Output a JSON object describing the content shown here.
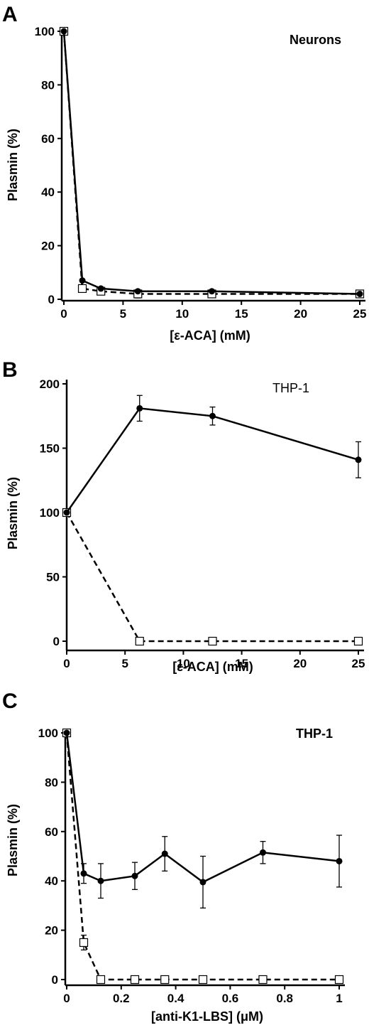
{
  "chart_data": [
    {
      "type": "line",
      "panel_label": "A",
      "annotation": "Neurons",
      "xlabel": "[ε-ACA] (mM)",
      "ylabel": "Plasmin (%)",
      "xlim": [
        0,
        25
      ],
      "ylim": [
        0,
        100
      ],
      "x_ticks": [
        0,
        5,
        10,
        15,
        20,
        25
      ],
      "y_ticks": [
        0,
        20,
        40,
        60,
        80,
        100
      ],
      "x_tick_labels": [
        "0",
        "5",
        "10",
        "15",
        "20",
        "25"
      ],
      "y_tick_labels": [
        "0",
        "20",
        "40",
        "60",
        "80",
        "100"
      ],
      "grid": false,
      "series": [
        {
          "marker": "filled-circle",
          "line": "solid",
          "x": [
            0,
            1.56,
            3.13,
            6.25,
            12.5,
            25
          ],
          "y": [
            100,
            7,
            4,
            3,
            3,
            2
          ],
          "err": [
            0,
            0,
            0,
            0,
            0,
            0
          ]
        },
        {
          "marker": "open-square",
          "line": "dashed",
          "x": [
            0,
            1.56,
            3.13,
            6.25,
            12.5,
            25
          ],
          "y": [
            100,
            4,
            3,
            2,
            2,
            2
          ],
          "err": [
            0,
            0,
            0,
            1.5,
            0,
            0
          ]
        }
      ]
    },
    {
      "type": "line",
      "panel_label": "B",
      "annotation": "THP-1",
      "xlabel": "[ε-ACA] (mM)",
      "ylabel": "Plasmin (%)",
      "xlim": [
        0,
        25
      ],
      "ylim": [
        0,
        200
      ],
      "x_ticks": [
        0,
        5,
        10,
        15,
        20,
        25
      ],
      "y_ticks": [
        0,
        50,
        100,
        150,
        200
      ],
      "x_tick_labels": [
        "0",
        "5",
        "10",
        "15",
        "20",
        "25"
      ],
      "y_tick_labels": [
        "0",
        "50",
        "100",
        "150",
        "200"
      ],
      "grid": false,
      "series": [
        {
          "marker": "filled-circle",
          "line": "solid",
          "x": [
            0,
            6.25,
            12.5,
            25
          ],
          "y": [
            100,
            181,
            175,
            141
          ],
          "err": [
            0,
            10,
            7,
            14
          ]
        },
        {
          "marker": "open-square",
          "line": "dashed",
          "x": [
            0,
            6.25,
            12.5,
            25
          ],
          "y": [
            100,
            0,
            0,
            0
          ],
          "err": [
            0,
            0,
            0,
            0
          ]
        }
      ]
    },
    {
      "type": "line",
      "panel_label": "C",
      "annotation": "THP-1",
      "xlabel": "[anti-K1-LBS] (μM)",
      "ylabel": "Plasmin (%)",
      "xlim": [
        0,
        1
      ],
      "ylim": [
        0,
        100
      ],
      "x_ticks": [
        0,
        0.2,
        0.4,
        0.6,
        0.8,
        1
      ],
      "y_ticks": [
        0,
        20,
        40,
        60,
        80,
        100
      ],
      "x_tick_labels": [
        "0",
        "0.2",
        "0.4",
        "0.6",
        "0.8",
        "1"
      ],
      "y_tick_labels": [
        "0",
        "20",
        "40",
        "60",
        "80",
        "100"
      ],
      "grid": false,
      "series": [
        {
          "marker": "filled-circle",
          "line": "solid",
          "x": [
            0,
            0.0625,
            0.125,
            0.25,
            0.36,
            0.5,
            0.72,
            1
          ],
          "y": [
            100,
            43,
            40,
            42,
            51,
            39.5,
            51.5,
            48
          ],
          "err": [
            0,
            4,
            7,
            5.5,
            7,
            10.5,
            4.5,
            10.5
          ]
        },
        {
          "marker": "open-square",
          "line": "dashed",
          "x": [
            0,
            0.0625,
            0.125,
            0.25,
            0.36,
            0.5,
            0.72,
            1
          ],
          "y": [
            100,
            15,
            0,
            0,
            0,
            0,
            0,
            0
          ],
          "err": [
            0,
            3,
            0,
            0,
            0,
            0,
            0,
            0
          ]
        }
      ]
    }
  ]
}
